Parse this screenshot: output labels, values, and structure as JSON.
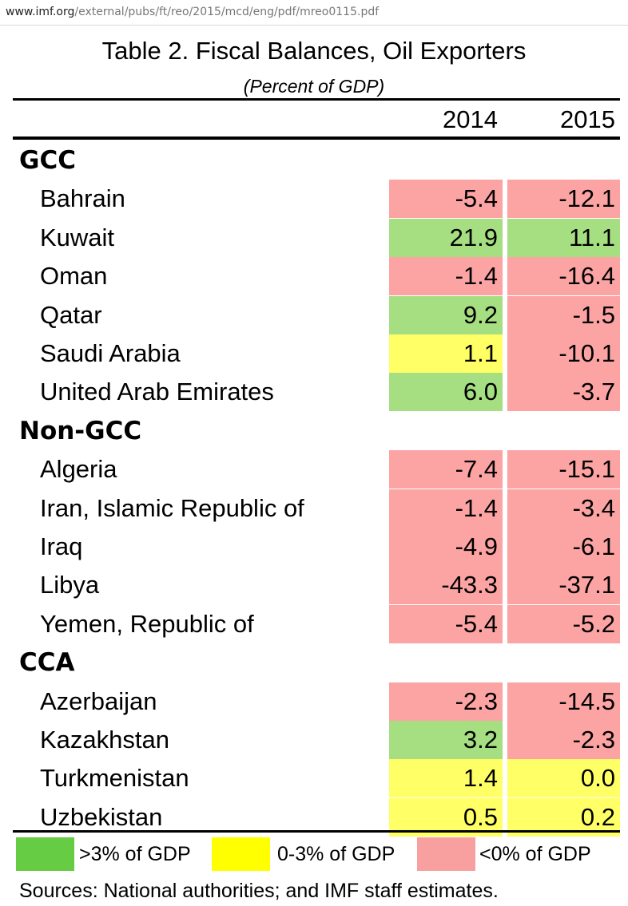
{
  "browser": {
    "url_domain": "www.imf.org",
    "url_path": "/external/pubs/ft/reo/2015/mcd/eng/pdf/mreo0115.pdf"
  },
  "table": {
    "title": "Table 2. Fiscal Balances, Oil Exporters",
    "subtitle": "(Percent of GDP)",
    "years": [
      "2014",
      "2015"
    ],
    "groups": [
      {
        "name": "GCC",
        "rows": [
          {
            "country": "Bahrain",
            "v2014": "-5.4",
            "v2015": "-12.1"
          },
          {
            "country": "Kuwait",
            "v2014": "21.9",
            "v2015": "11.1"
          },
          {
            "country": "Oman",
            "v2014": "-1.4",
            "v2015": "-16.4"
          },
          {
            "country": "Qatar",
            "v2014": "9.2",
            "v2015": "-1.5"
          },
          {
            "country": "Saudi Arabia",
            "v2014": "1.1",
            "v2015": "-10.1"
          },
          {
            "country": "United Arab Emirates",
            "v2014": "6.0",
            "v2015": "-3.7"
          }
        ]
      },
      {
        "name": "Non-GCC",
        "rows": [
          {
            "country": "Algeria",
            "v2014": "-7.4",
            "v2015": "-15.1"
          },
          {
            "country": "Iran, Islamic Republic of",
            "v2014": "-1.4",
            "v2015": "-3.4"
          },
          {
            "country": "Iraq",
            "v2014": "-4.9",
            "v2015": "-6.1"
          },
          {
            "country": "Libya",
            "v2014": "-43.3",
            "v2015": "-37.1"
          },
          {
            "country": "Yemen, Republic of",
            "v2014": "-5.4",
            "v2015": "-5.2"
          }
        ]
      },
      {
        "name": "CCA",
        "rows": [
          {
            "country": "Azerbaijan",
            "v2014": "-2.3",
            "v2015": "-14.5"
          },
          {
            "country": "Kazakhstan",
            "v2014": "3.2",
            "v2015": "-2.3"
          },
          {
            "country": "Turkmenistan",
            "v2014": "1.4",
            "v2015": "0.0"
          },
          {
            "country": "Uzbekistan",
            "v2014": "0.5",
            "v2015": "0.2"
          }
        ]
      }
    ]
  },
  "legend": [
    {
      "label": ">3% of GDP",
      "color": "#66cc44"
    },
    {
      "label": "0-3% of GDP",
      "color": "#ffff00"
    },
    {
      "label": "<0% of GDP",
      "color": "#f8a0a0"
    }
  ],
  "cell_colors": {
    "positive_high": "#a6de82",
    "positive_low": "#ffff66",
    "negative": "#fca3a3"
  },
  "sources": "Sources: National authorities; and IMF staff estimates."
}
